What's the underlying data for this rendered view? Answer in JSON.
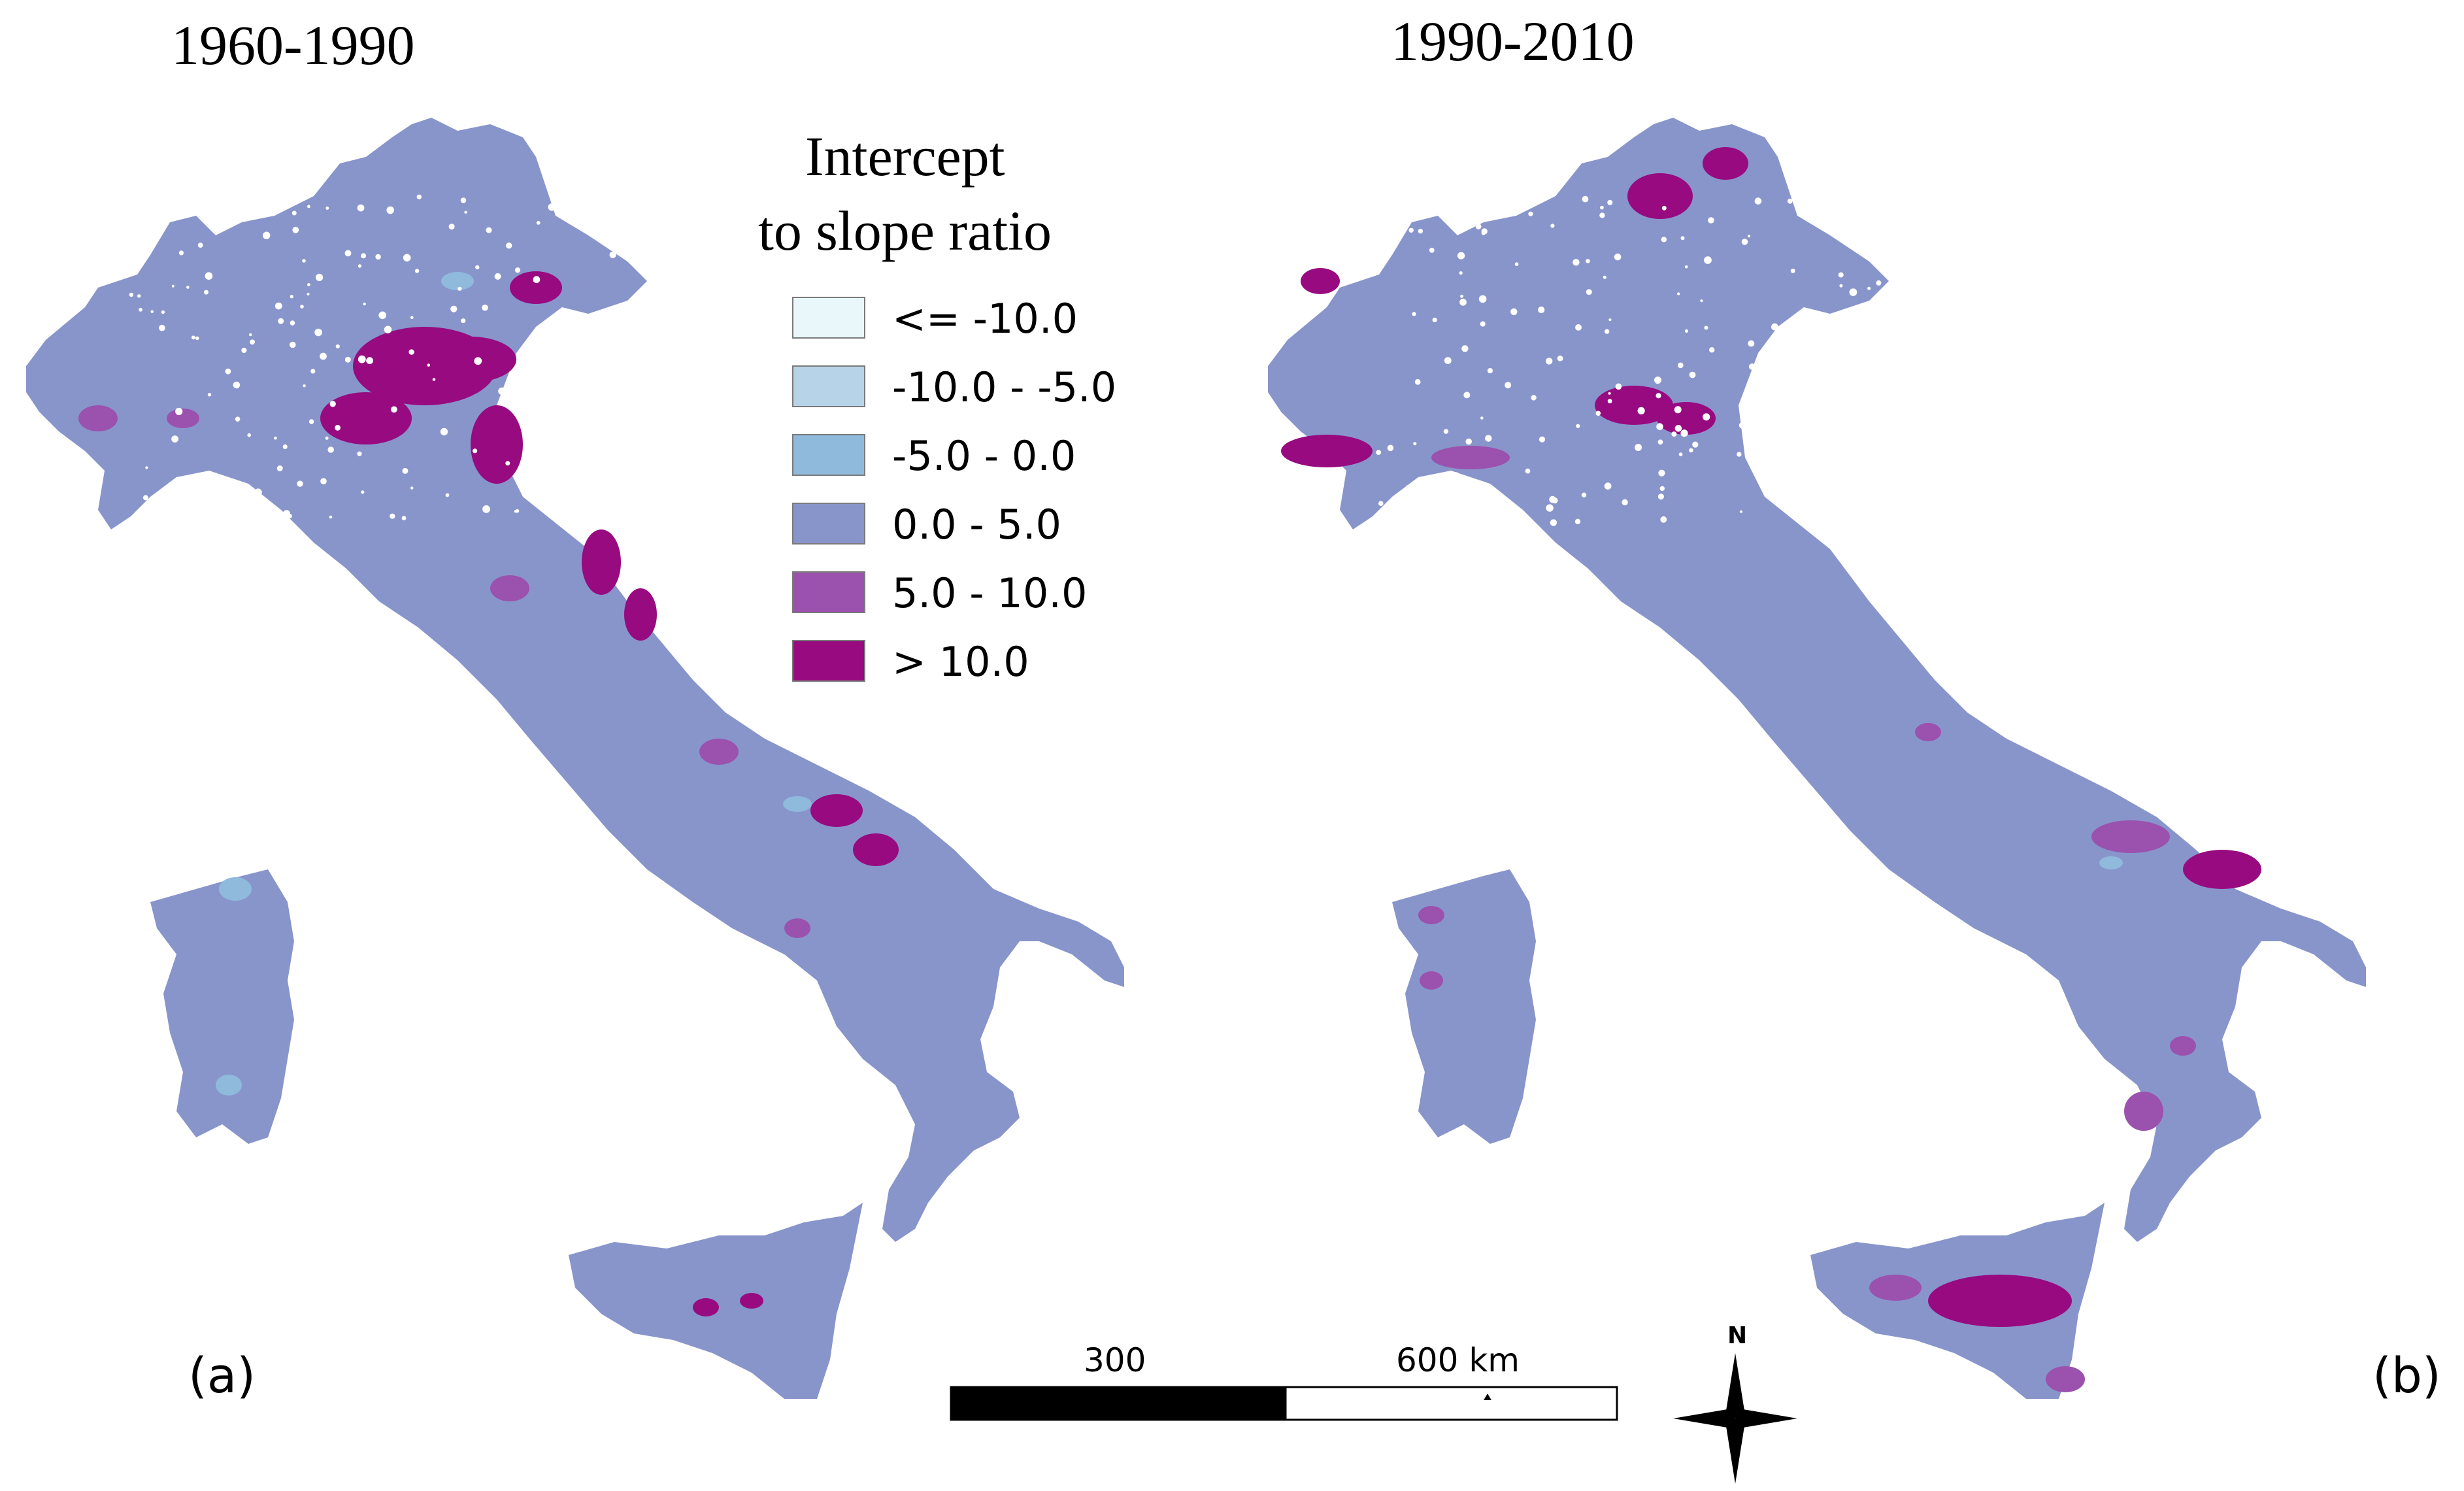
{
  "panels": [
    {
      "period": "1960-1990",
      "tag": "(a)"
    },
    {
      "period": "1990-2010",
      "tag": "(b)"
    }
  ],
  "legend": {
    "title_line1": "Intercept",
    "title_line2": "to slope ratio",
    "classes": [
      {
        "label": "<= -10.0",
        "color": "#e9f7fb"
      },
      {
        "label": "-10.0 - -5.0",
        "color": "#b7d3e8"
      },
      {
        "label": "-5.0 - 0.0",
        "color": "#8fbadc"
      },
      {
        "label": "0.0 - 5.0",
        "color": "#8895cb"
      },
      {
        "label": "5.0 - 10.0",
        "color": "#9b51ae"
      },
      {
        "label": "> 10.0",
        "color": "#970a80"
      }
    ]
  },
  "scalebar": {
    "mid_label": "300",
    "end_label": "600 km"
  },
  "north_arrow": {
    "label": "N"
  },
  "colors": {
    "land": "#8895cb",
    "hotspot_high": "#970a80",
    "hotspot_mid": "#9b51ae",
    "negative_low": "#8fbadc",
    "missing": "#ffffff"
  }
}
